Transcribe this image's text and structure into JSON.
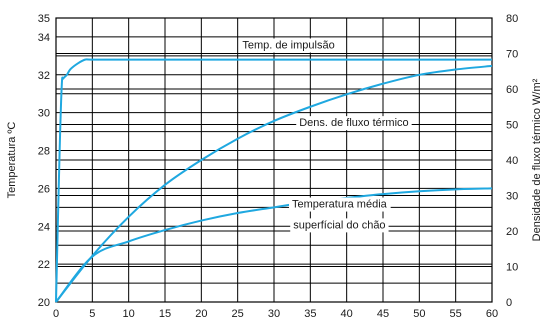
{
  "chart_data": {
    "type": "line",
    "title": "",
    "xlabel": "",
    "ylabel_left": "Temperatura ºC",
    "ylabel_right": "Densidade de fluxo térmico W/m²",
    "xlim": [
      0,
      60
    ],
    "ylim_left": [
      20,
      35
    ],
    "ylim_right": [
      0,
      80
    ],
    "grid": true,
    "legend": "none",
    "x_ticks": [
      "0",
      "5",
      "10",
      "15",
      "20",
      "25",
      "30",
      "35",
      "40",
      "45",
      "50",
      "55",
      "60"
    ],
    "y_left_ticks": [
      "20",
      "22",
      "24",
      "26",
      "28",
      "30",
      "32",
      "34",
      "35"
    ],
    "y_right_ticks": [
      "0",
      "10",
      "20",
      "30",
      "40",
      "50",
      "60",
      "70",
      "80"
    ],
    "series": [
      {
        "axis": "left",
        "color": "#1fa8e0",
        "x": [
          0,
          0.5,
          0.8,
          1,
          1.5,
          2,
          3,
          4,
          5,
          10,
          20,
          30,
          40,
          50,
          60
        ],
        "y": [
          20,
          28,
          31.5,
          31.8,
          32.0,
          32.3,
          32.6,
          32.8,
          32.8,
          32.8,
          32.8,
          32.8,
          32.8,
          32.8,
          32.8
        ]
      },
      {
        "axis": "right",
        "color": "#1fa8e0",
        "x": [
          0,
          5,
          10,
          15,
          20,
          25,
          30,
          35,
          40,
          45,
          50,
          55,
          60
        ],
        "y": [
          0,
          13,
          24,
          33,
          40,
          46,
          51,
          55,
          58.5,
          61.5,
          64,
          65.5,
          66.5
        ]
      },
      {
        "axis": "left",
        "color": "#1fa8e0",
        "x": [
          0,
          5,
          10,
          15,
          20,
          25,
          30,
          35,
          40,
          45,
          50,
          55,
          60
        ],
        "y": [
          20,
          22.4,
          23.2,
          23.8,
          24.3,
          24.7,
          25.0,
          25.3,
          25.5,
          25.7,
          25.85,
          25.95,
          26.0
        ]
      }
    ],
    "annotations": [
      {
        "text": "Temp. de impulsão",
        "x": 32,
        "y": 33.6
      },
      {
        "text": "Dens. de fluxo térmico",
        "x": 41,
        "y": 29.5
      },
      {
        "text": "Temperatura média",
        "x": 39,
        "y": 25.2
      },
      {
        "text": "superfícial do chão",
        "x": 39,
        "y": 24.1
      }
    ]
  },
  "colors": {
    "series": "#1fa8e0",
    "grid": "#000000"
  }
}
